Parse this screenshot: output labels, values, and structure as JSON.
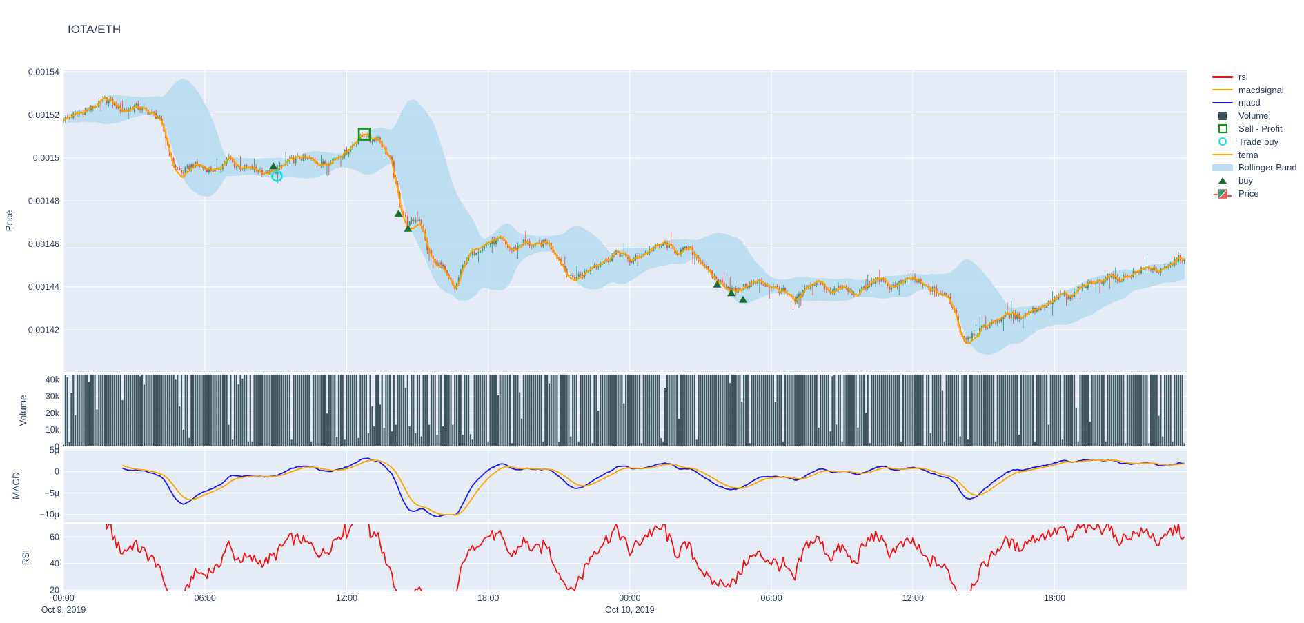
{
  "title": "IOTA/ETH",
  "style": {
    "plot_bg": "#E5ECF6",
    "grid_color": "#ffffff",
    "font_color": "#2a3f5f",
    "candle_up": "#359d7d",
    "candle_down": "#e25d50",
    "bollinger_fill": "#badcf0",
    "tema_color": "#ffa500",
    "tema_dot_color": "#f29200",
    "volume_bar": "#3f565e",
    "macd_color": "#1a1ae6",
    "macdsignal_color": "#ffa500",
    "rsi_color": "#f01414",
    "buy_marker": "#1b6e2e",
    "sell_marker": "#0c9413",
    "trade_buy_marker": "#18e0e8"
  },
  "legend": {
    "items": [
      {
        "id": "rsi",
        "label": "rsi",
        "glyph": "line",
        "color": "#f01414"
      },
      {
        "id": "macdsignal",
        "label": "macdsignal",
        "glyph": "line",
        "color": "#ffa500"
      },
      {
        "id": "macd",
        "label": "macd",
        "glyph": "line",
        "color": "#1a1ae6"
      },
      {
        "id": "volume",
        "label": "Volume",
        "glyph": "square",
        "color": "#3f565e"
      },
      {
        "id": "sell-profit",
        "label": "Sell - Profit",
        "glyph": "open-square",
        "color": "#0c9413"
      },
      {
        "id": "trade-buy",
        "label": "Trade buy",
        "glyph": "circle",
        "color": "#18e0e8"
      },
      {
        "id": "tema",
        "label": "tema",
        "glyph": "line",
        "color": "#ffa500"
      },
      {
        "id": "bollinger-band",
        "label": "Bollinger Band",
        "glyph": "band",
        "color": "#badcf0"
      },
      {
        "id": "buy",
        "label": "buy",
        "glyph": "triangle",
        "color": "#1b6e2e"
      },
      {
        "id": "price",
        "label": "Price",
        "glyph": "candle",
        "color": "#359d7d",
        "color2": "#e25d50"
      }
    ]
  },
  "axes": {
    "price": {
      "title": "Price"
    },
    "volume": {
      "title": "Volume"
    },
    "macd": {
      "title": "MACD"
    },
    "rsi": {
      "title": "RSI"
    }
  },
  "x_axis": {
    "hours_span": 47.6,
    "ticks": [
      {
        "t": 0,
        "label": "00:00"
      },
      {
        "t": 6,
        "label": "06:00"
      },
      {
        "t": 12,
        "label": "12:00"
      },
      {
        "t": 18,
        "label": "18:00"
      },
      {
        "t": 24,
        "label": "00:00"
      },
      {
        "t": 30,
        "label": "06:00"
      },
      {
        "t": 36,
        "label": "12:00"
      },
      {
        "t": 42,
        "label": "18:00"
      }
    ],
    "date_labels": [
      {
        "t": 0,
        "label": "Oct 9, 2019"
      },
      {
        "t": 24,
        "label": "Oct 10, 2019"
      }
    ]
  },
  "chart_data": [
    {
      "type": "candlestick",
      "name": "Price",
      "panel": "price",
      "ylabel": "Price",
      "ylim": [
        0.0014005,
        0.001541
      ],
      "yticks": [
        {
          "v": 0.00154,
          "label": "0.00154"
        },
        {
          "v": 0.00152,
          "label": "0.00152"
        },
        {
          "v": 0.0015,
          "label": "0.0015"
        },
        {
          "v": 0.00148,
          "label": "0.00148"
        },
        {
          "v": 0.00146,
          "label": "0.00146"
        },
        {
          "v": 0.00144,
          "label": "0.00144"
        },
        {
          "v": 0.00142,
          "label": "0.00142"
        }
      ],
      "bar_minutes": 5,
      "close_anchors": [
        [
          0,
          0.001518
        ],
        [
          0.5,
          0.00152
        ],
        [
          1,
          0.001522
        ],
        [
          1.5,
          0.001525
        ],
        [
          1.75,
          0.001527
        ],
        [
          2,
          0.001526
        ],
        [
          2.5,
          0.001522
        ],
        [
          3,
          0.001524
        ],
        [
          3.5,
          0.001522
        ],
        [
          4,
          0.001519
        ],
        [
          4.3,
          0.001511
        ],
        [
          4.6,
          0.001498
        ],
        [
          5,
          0.001493
        ],
        [
          5.5,
          0.001497
        ],
        [
          6,
          0.001495
        ],
        [
          6.5,
          0.001494
        ],
        [
          7,
          0.0015
        ],
        [
          7.3,
          0.001496
        ],
        [
          8,
          0.001495
        ],
        [
          8.6,
          0.001493
        ],
        [
          9,
          0.001494
        ],
        [
          9.5,
          0.001498
        ],
        [
          10,
          0.0015
        ],
        [
          10.5,
          0.001499
        ],
        [
          11,
          0.001497
        ],
        [
          11.5,
          0.0015
        ],
        [
          12,
          0.001503
        ],
        [
          12.5,
          0.001509
        ],
        [
          12.8,
          0.001511
        ],
        [
          13,
          0.001508
        ],
        [
          13.3,
          0.00151
        ],
        [
          13.6,
          0.001504
        ],
        [
          13.9,
          0.001498
        ],
        [
          14.1,
          0.001486
        ],
        [
          14.3,
          0.001477
        ],
        [
          14.6,
          0.001469
        ],
        [
          14.9,
          0.001471
        ],
        [
          15.1,
          0.001472
        ],
        [
          15.4,
          0.001458
        ],
        [
          15.7,
          0.001452
        ],
        [
          16,
          0.00145
        ],
        [
          16.3,
          0.001444
        ],
        [
          16.6,
          0.001439
        ],
        [
          16.8,
          0.001446
        ],
        [
          17,
          0.001452
        ],
        [
          17.5,
          0.001457
        ],
        [
          18,
          0.00146
        ],
        [
          18.5,
          0.001462
        ],
        [
          19,
          0.001457
        ],
        [
          19.5,
          0.001461
        ],
        [
          20,
          0.001459
        ],
        [
          20.5,
          0.001461
        ],
        [
          21,
          0.001453
        ],
        [
          21.5,
          0.001444
        ],
        [
          22,
          0.001446
        ],
        [
          22.5,
          0.00145
        ],
        [
          23,
          0.001452
        ],
        [
          23.5,
          0.001456
        ],
        [
          24,
          0.001452
        ],
        [
          24.5,
          0.001455
        ],
        [
          25,
          0.001458
        ],
        [
          25.5,
          0.00146
        ],
        [
          26,
          0.001456
        ],
        [
          26.5,
          0.001458
        ],
        [
          27,
          0.001452
        ],
        [
          27.5,
          0.001445
        ],
        [
          28,
          0.001441
        ],
        [
          28.5,
          0.001438
        ],
        [
          29,
          0.001441
        ],
        [
          29.5,
          0.001442
        ],
        [
          30,
          0.00144
        ],
        [
          30.5,
          0.001438
        ],
        [
          31,
          0.001433
        ],
        [
          31.5,
          0.00144
        ],
        [
          32,
          0.001442
        ],
        [
          32.5,
          0.001438
        ],
        [
          33,
          0.00144
        ],
        [
          33.5,
          0.001436
        ],
        [
          34,
          0.00144
        ],
        [
          34.5,
          0.001444
        ],
        [
          35,
          0.00144
        ],
        [
          35.5,
          0.001442
        ],
        [
          36,
          0.001444
        ],
        [
          36.5,
          0.00144
        ],
        [
          37,
          0.001438
        ],
        [
          37.5,
          0.001435
        ],
        [
          37.8,
          0.001428
        ],
        [
          38,
          0.001419
        ],
        [
          38.2,
          0.001416
        ],
        [
          38.5,
          0.001418
        ],
        [
          39,
          0.001421
        ],
        [
          39.5,
          0.001424
        ],
        [
          40,
          0.001427
        ],
        [
          40.5,
          0.001426
        ],
        [
          41,
          0.001429
        ],
        [
          41.5,
          0.001431
        ],
        [
          42,
          0.001434
        ],
        [
          42.3,
          0.001437
        ],
        [
          42.6,
          0.001434
        ],
        [
          43,
          0.001439
        ],
        [
          43.5,
          0.001441
        ],
        [
          44,
          0.001443
        ],
        [
          44.3,
          0.001446
        ],
        [
          44.6,
          0.001443
        ],
        [
          45,
          0.001445
        ],
        [
          45.5,
          0.001447
        ],
        [
          46,
          0.001449
        ],
        [
          46.5,
          0.001447
        ],
        [
          47,
          0.001451
        ],
        [
          47.3,
          0.001454
        ],
        [
          47.6,
          0.001451
        ]
      ],
      "overlays": {
        "bollinger": {
          "name": "Bollinger Band",
          "window_bars": 30,
          "k": 2.0,
          "base_width": 5e-07
        },
        "tema": {
          "name": "tema",
          "span_bars": 9
        }
      },
      "markers": {
        "buy": [
          [
            8.9,
            0.001496
          ],
          [
            14.2,
            0.001474
          ],
          [
            14.6,
            0.001467
          ],
          [
            27.7,
            0.001441
          ],
          [
            28.3,
            0.001437
          ],
          [
            28.8,
            0.001434
          ]
        ],
        "sell_profit": [
          [
            12.75,
            0.001511
          ]
        ],
        "trade_buy": [
          [
            9.05,
            0.0014915
          ]
        ]
      }
    },
    {
      "type": "bar",
      "name": "Volume",
      "panel": "volume",
      "ylabel": "Volume",
      "ylim_k": [
        0,
        43
      ],
      "yticks": [
        {
          "v": 40,
          "label": "40k"
        },
        {
          "v": 30,
          "label": "30k"
        },
        {
          "v": 20,
          "label": "20k"
        },
        {
          "v": 10,
          "label": "10k"
        },
        {
          "v": 0,
          "label": "0"
        }
      ],
      "base_noise_k": 0.25,
      "spikes_k": [
        [
          4.75,
          40
        ],
        [
          4.9,
          24
        ],
        [
          5.05,
          10
        ],
        [
          5.3,
          5
        ],
        [
          7.0,
          13
        ],
        [
          7.2,
          4
        ],
        [
          8.0,
          3
        ],
        [
          9.7,
          4
        ],
        [
          10.5,
          3
        ],
        [
          11.9,
          4
        ],
        [
          12.5,
          5
        ],
        [
          12.9,
          8
        ],
        [
          13.2,
          12
        ],
        [
          13.4,
          25
        ],
        [
          13.6,
          11
        ],
        [
          13.9,
          9
        ],
        [
          14.1,
          13
        ],
        [
          14.5,
          35
        ],
        [
          14.7,
          12
        ],
        [
          14.9,
          8
        ],
        [
          15.2,
          6
        ],
        [
          15.5,
          13
        ],
        [
          15.8,
          7
        ],
        [
          16.1,
          12
        ],
        [
          16.5,
          13
        ],
        [
          16.9,
          7
        ],
        [
          17.3,
          4
        ],
        [
          18.0,
          3
        ],
        [
          19.0,
          2
        ],
        [
          20.3,
          3
        ],
        [
          21.5,
          6
        ],
        [
          21.8,
          3
        ],
        [
          22.4,
          2
        ],
        [
          24.5,
          2
        ],
        [
          25.4,
          3
        ],
        [
          26.8,
          4
        ],
        [
          28.25,
          38
        ],
        [
          29.1,
          2
        ],
        [
          30.5,
          3
        ],
        [
          32.5,
          9
        ],
        [
          33.0,
          3
        ],
        [
          34.2,
          2
        ],
        [
          35.5,
          3
        ],
        [
          36.75,
          8
        ],
        [
          37.3,
          3
        ],
        [
          38.0,
          6
        ],
        [
          38.3,
          4
        ],
        [
          39.5,
          3
        ],
        [
          40.5,
          7
        ],
        [
          41.2,
          3
        ],
        [
          41.75,
          13
        ],
        [
          42.3,
          4
        ],
        [
          43.0,
          3
        ],
        [
          44.2,
          3
        ],
        [
          45.0,
          2
        ],
        [
          46.0,
          2
        ],
        [
          47.0,
          3
        ],
        [
          47.5,
          2
        ]
      ]
    },
    {
      "type": "line",
      "name": "MACD",
      "panel": "macd",
      "ylabel": "MACD",
      "ylim": [
        -1.18e-05,
        5.2e-06
      ],
      "yticks": [
        {
          "v": 5e-06,
          "label": "5μ"
        },
        {
          "v": 0,
          "label": "0"
        },
        {
          "v": -5e-06,
          "label": "−5μ"
        },
        {
          "v": -1e-05,
          "label": "−10μ"
        }
      ],
      "series": [
        {
          "name": "macd",
          "derived_from": "Price close",
          "params": {
            "fast": 12,
            "slow": 26
          }
        },
        {
          "name": "macdsignal",
          "derived_from": "macd",
          "params": {
            "signal": 9
          }
        }
      ]
    },
    {
      "type": "line",
      "name": "RSI",
      "panel": "rsi",
      "ylabel": "RSI",
      "ylim": [
        19,
        69.5
      ],
      "yticks": [
        {
          "v": 60,
          "label": "60"
        },
        {
          "v": 40,
          "label": "40"
        },
        {
          "v": 20,
          "label": "20"
        }
      ],
      "series": [
        {
          "name": "rsi",
          "derived_from": "Price close",
          "params": {
            "period": 14
          }
        }
      ]
    }
  ]
}
